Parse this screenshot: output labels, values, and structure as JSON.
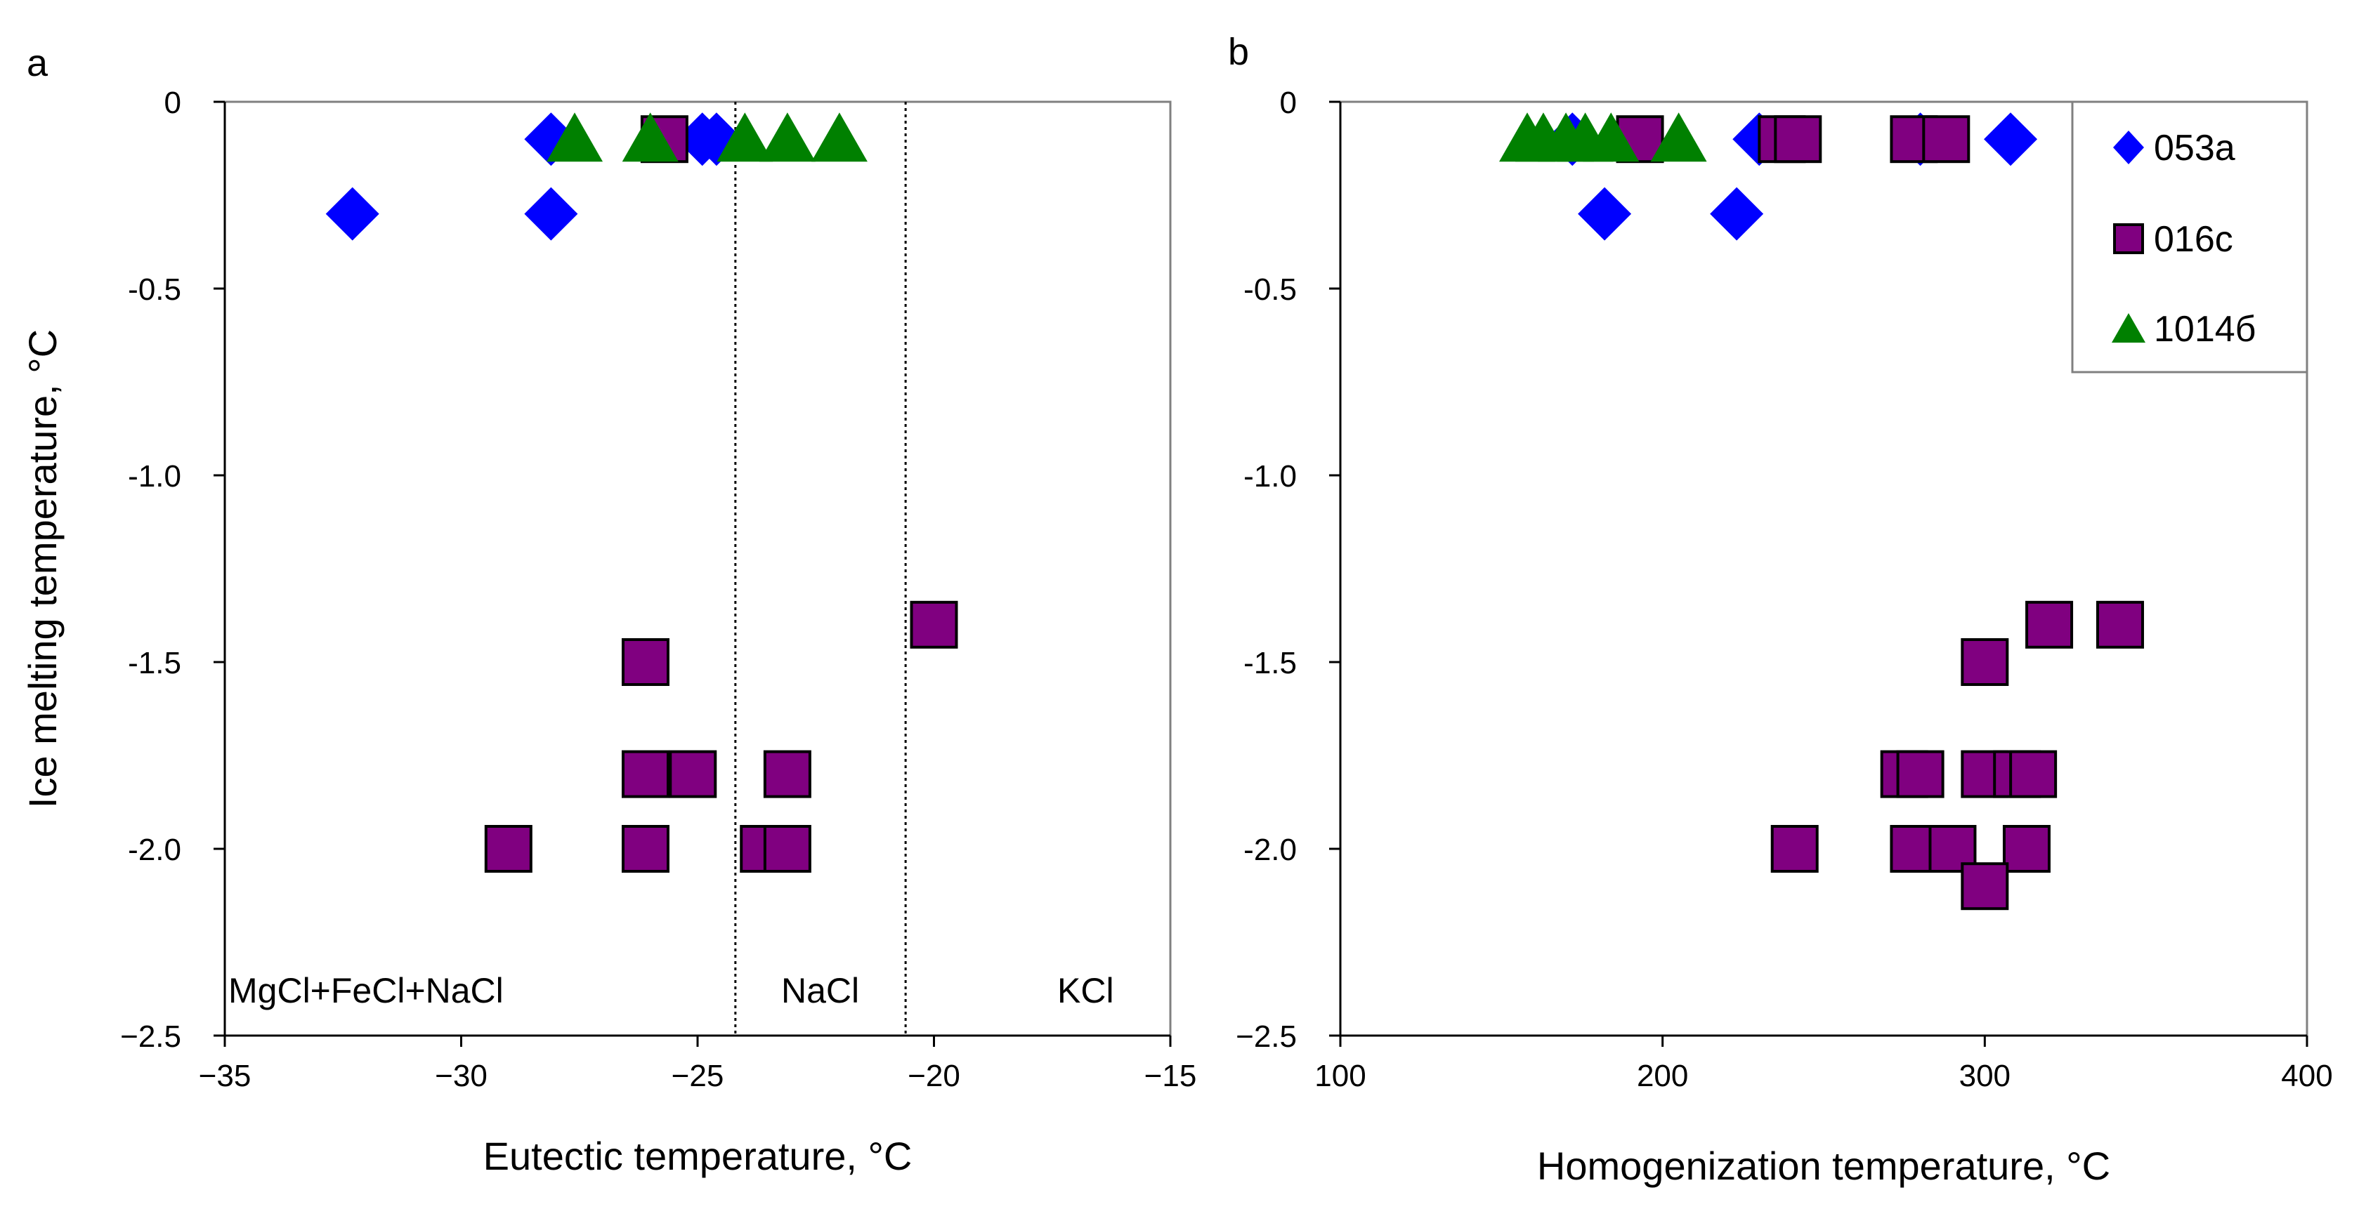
{
  "colors": {
    "series_053a": "#0000FF",
    "series_016c": "#800080",
    "series_016c_edge": "#000000",
    "series_1014b": "#008000",
    "axis": "#000000",
    "frame": "#808080",
    "background": "#FFFFFF"
  },
  "chart_data": [
    {
      "type": "scatter",
      "panel_label": "a",
      "title": "",
      "xlabel": "Eutectic temperature, °C",
      "ylabel": "Ice melting temperature, °C",
      "xlim": [
        -35,
        -15
      ],
      "ylim": [
        -2.5,
        0
      ],
      "xticks": [
        -35,
        -30,
        -25,
        -20,
        -15
      ],
      "yticks": [
        0,
        -0.5,
        -1.0,
        -1.5,
        -2.0,
        -2.5
      ],
      "xtick_labels": [
        "−35",
        "−30",
        "−25",
        "−20",
        "−15"
      ],
      "ytick_labels": [
        "0",
        "-0.5",
        "-1.0",
        "-1.5",
        "-2.0",
        "−2.5"
      ],
      "grid": false,
      "vlines": [
        {
          "x": -24.2,
          "style": "dotted"
        },
        {
          "x": -20.6,
          "style": "dotted"
        }
      ],
      "region_labels": [
        "MgCl+FeCl+NaCl",
        "NaCl",
        "KCl"
      ],
      "series": [
        {
          "name": "053a",
          "marker": "diamond",
          "points": [
            [
              -32.3,
              -0.3
            ],
            [
              -28.1,
              -0.3
            ],
            [
              -28.1,
              -0.1
            ],
            [
              -24.9,
              -0.1
            ],
            [
              -24.6,
              -0.1
            ]
          ]
        },
        {
          "name": "016c",
          "marker": "square",
          "points": [
            [
              -25.7,
              -0.1
            ],
            [
              -20.0,
              -1.4
            ],
            [
              -26.1,
              -1.5
            ],
            [
              -26.1,
              -1.8
            ],
            [
              -25.1,
              -1.8
            ],
            [
              -23.1,
              -1.8
            ],
            [
              -29.0,
              -2.0
            ],
            [
              -26.1,
              -2.0
            ],
            [
              -23.6,
              -2.0
            ],
            [
              -23.1,
              -2.0
            ]
          ]
        },
        {
          "name": "1014б",
          "marker": "triangle",
          "points": [
            [
              -27.6,
              -0.1
            ],
            [
              -26.0,
              -0.1
            ],
            [
              -24.0,
              -0.1
            ],
            [
              -23.1,
              -0.1
            ],
            [
              -22.0,
              -0.1
            ]
          ]
        }
      ]
    },
    {
      "type": "scatter",
      "panel_label": "b",
      "title": "",
      "xlabel": "Homogenization temperature, °C",
      "ylabel": "",
      "xlim": [
        100,
        400
      ],
      "ylim": [
        -2.5,
        0
      ],
      "xticks": [
        100,
        200,
        300,
        400
      ],
      "yticks": [
        0,
        -0.5,
        -1.0,
        -1.5,
        -2.0,
        -2.5
      ],
      "xtick_labels": [
        "100",
        "200",
        "300",
        "400"
      ],
      "ytick_labels": [
        "0",
        "-0.5",
        "-1.0",
        "-1.5",
        "-2.0",
        "−2.5"
      ],
      "grid": false,
      "legend": {
        "position": "top-right",
        "entries": [
          "053a",
          "016c",
          "1014б"
        ]
      },
      "series": [
        {
          "name": "053a",
          "marker": "diamond",
          "points": [
            [
              172,
              -0.1
            ],
            [
              182,
              -0.3
            ],
            [
              223,
              -0.3
            ],
            [
              230,
              -0.1
            ],
            [
              280,
              -0.1
            ],
            [
              308,
              -0.1
            ]
          ]
        },
        {
          "name": "016c",
          "marker": "square",
          "points": [
            [
              193,
              -0.1
            ],
            [
              237,
              -0.1
            ],
            [
              242,
              -0.1
            ],
            [
              278,
              -0.1
            ],
            [
              288,
              -0.1
            ],
            [
              320,
              -1.4
            ],
            [
              342,
              -1.4
            ],
            [
              300,
              -1.5
            ],
            [
              275,
              -1.8
            ],
            [
              280,
              -1.8
            ],
            [
              300,
              -1.8
            ],
            [
              310,
              -1.8
            ],
            [
              315,
              -1.8
            ],
            [
              241,
              -2.0
            ],
            [
              278,
              -2.0
            ],
            [
              290,
              -2.0
            ],
            [
              313,
              -2.0
            ],
            [
              300,
              -2.1
            ]
          ]
        },
        {
          "name": "1014б",
          "marker": "triangle",
          "points": [
            [
              158,
              -0.1
            ],
            [
              163,
              -0.1
            ],
            [
              170,
              -0.1
            ],
            [
              176,
              -0.1
            ],
            [
              184,
              -0.1
            ],
            [
              205,
              -0.1
            ]
          ]
        }
      ]
    }
  ]
}
